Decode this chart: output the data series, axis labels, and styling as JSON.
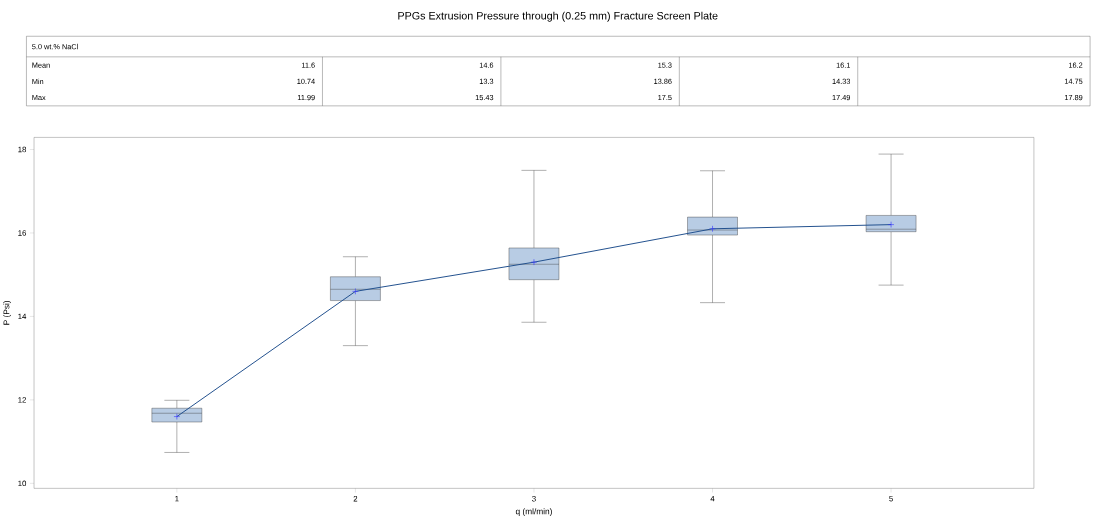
{
  "chart_data": {
    "type": "box",
    "title": "PPGs Extrusion Pressure through (0.25 mm) Fracture Screen Plate",
    "xlabel": "q (ml/min)",
    "ylabel": "P (Psi)",
    "categories": [
      "1",
      "2",
      "3",
      "4",
      "5"
    ],
    "color": "#b8cce4",
    "boxes": [
      {
        "low": 10.74,
        "q1": 11.47,
        "median": 11.68,
        "q3": 11.8,
        "high": 11.99
      },
      {
        "low": 13.3,
        "q1": 14.38,
        "median": 14.65,
        "q3": 14.95,
        "high": 15.43
      },
      {
        "low": 13.86,
        "q1": 14.88,
        "median": 15.25,
        "q3": 15.64,
        "high": 17.5
      },
      {
        "low": 14.33,
        "q1": 15.95,
        "median": 16.07,
        "q3": 16.38,
        "high": 17.49
      },
      {
        "low": 14.75,
        "q1": 16.03,
        "median": 16.09,
        "q3": 16.42,
        "high": 17.89
      }
    ],
    "series": [
      {
        "type": "line",
        "color": "#1f4e8c",
        "marker": "cross",
        "values": [
          11.6,
          14.6,
          15.3,
          16.1,
          16.2
        ]
      }
    ],
    "ylim": [
      9.88,
      18.29
    ],
    "yticks": [
      10,
      12,
      14,
      16,
      18
    ],
    "grid": false,
    "annotations": [
      "5.0 wt.% NaCl",
      "Mean",
      "Min",
      "Max",
      "11.6",
      "14.6",
      "15.3",
      "16.1",
      "16.2",
      "10.74",
      "13.3",
      "13.86",
      "14.33",
      "14.75",
      "11.99",
      "15.43",
      "17.5",
      "17.49",
      "17.89"
    ]
  }
}
